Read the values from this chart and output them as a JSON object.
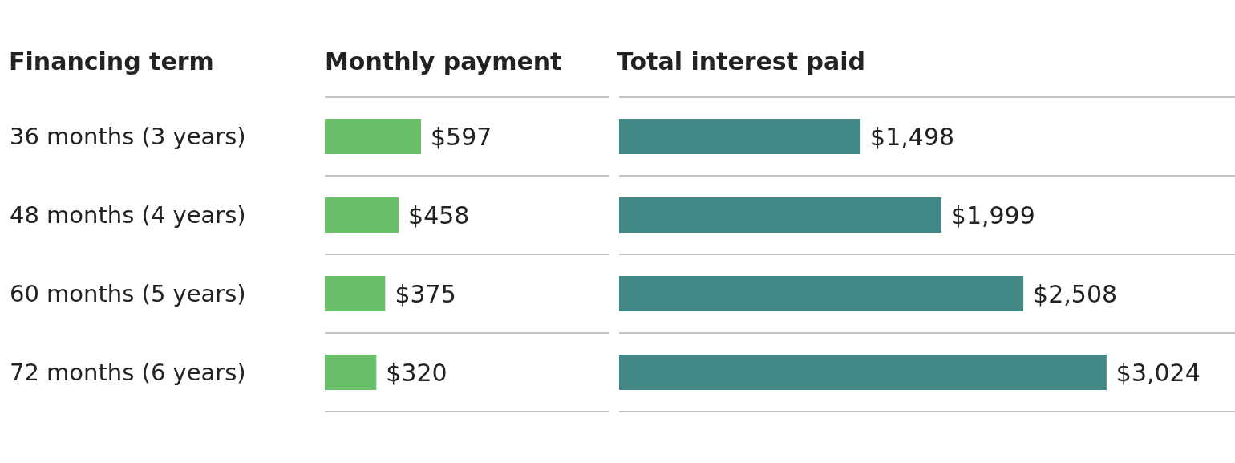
{
  "chart_data": [
    {
      "type": "bar",
      "orientation": "horizontal",
      "ylabel": "Financing term",
      "title": "Monthly payment",
      "categories": [
        "36 months (3 years)",
        "48 months (4 years)",
        "60 months (5 years)",
        "72 months (6 years)"
      ],
      "values": [
        597,
        458,
        375,
        320
      ],
      "value_labels": [
        "$597",
        "$458",
        "$375",
        "$320"
      ],
      "color": "#6abf69",
      "grid": "y",
      "tick_labels": "y"
    },
    {
      "type": "bar",
      "orientation": "horizontal",
      "title": "Total interest paid",
      "categories": [
        null,
        null,
        null,
        null
      ],
      "values": [
        1498,
        1999,
        2508,
        3024
      ],
      "value_labels": [
        "$1,498",
        "$1,999",
        "$2,508",
        "$3,024"
      ],
      "color": "#418887",
      "grid": "y",
      "tick_labels": false
    }
  ]
}
